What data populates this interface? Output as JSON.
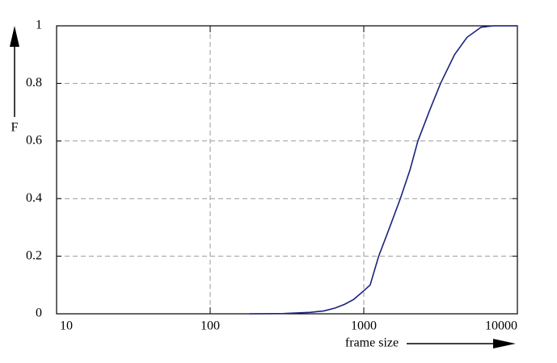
{
  "chart_data": {
    "type": "line",
    "x_label": "frame size",
    "y_label": "F",
    "x": [
      180,
      300,
      450,
      550,
      650,
      750,
      860,
      1000,
      1100,
      1250,
      1450,
      1730,
      2000,
      2250,
      2700,
      3160,
      3900,
      4700,
      5800,
      7000,
      10000
    ],
    "series": [
      {
        "color": "#1a237e",
        "values": [
          0,
          0.001,
          0.005,
          0.01,
          0.02,
          0.033,
          0.05,
          0.08,
          0.1,
          0.2,
          0.29,
          0.4,
          0.5,
          0.6,
          0.71,
          0.8,
          0.9,
          0.96,
          0.995,
          1,
          1
        ]
      }
    ],
    "xlim": [
      10,
      10000
    ],
    "xticks": [
      10,
      100,
      1000,
      10000
    ],
    "xscale": "log",
    "ylim": [
      0,
      1
    ],
    "yticks": [
      0,
      0.2,
      0.4,
      0.6,
      0.8,
      1
    ],
    "grid": true
  }
}
